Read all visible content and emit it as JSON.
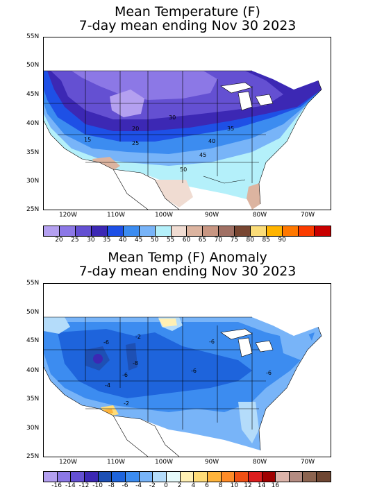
{
  "top": {
    "title_line1": "Mean Temperature (F)",
    "title_line2": "7-day mean ending Nov 30 2023",
    "lat_labels": [
      "55N",
      "50N",
      "45N",
      "40N",
      "35N",
      "30N",
      "25N"
    ],
    "lon_labels": [
      "120W",
      "110W",
      "100W",
      "90W",
      "80W",
      "70W"
    ],
    "contour_labels": [
      "30",
      "20",
      "35",
      "25",
      "40",
      "45",
      "50",
      "15"
    ],
    "colorbar": {
      "colors": [
        "#b4a0f0",
        "#8c78e6",
        "#6450d2",
        "#3c28b4",
        "#1e50e6",
        "#3c8cf0",
        "#78b4f8",
        "#b4f0fa",
        "#f0dcd2",
        "#dcb4a0",
        "#c89682",
        "#a07064",
        "#784632",
        "#fadc78",
        "#ffb400",
        "#ff7800",
        "#fa3c00",
        "#c80000"
      ],
      "labels": [
        "20",
        "25",
        "30",
        "35",
        "40",
        "45",
        "50",
        "55",
        "60",
        "65",
        "70",
        "75",
        "80",
        "85",
        "90"
      ]
    }
  },
  "bottom": {
    "title_line1": "Mean Temp (F) Anomaly",
    "title_line2": "7-day mean ending Nov 30 2023",
    "lat_labels": [
      "55N",
      "50N",
      "45N",
      "40N",
      "35N",
      "30N",
      "25N"
    ],
    "lon_labels": [
      "120W",
      "110W",
      "100W",
      "90W",
      "80W",
      "70W"
    ],
    "contour_labels": [
      "-2",
      "-6",
      "-8",
      "-6",
      "-4",
      "-6",
      "-2",
      "-6",
      "-6"
    ],
    "colorbar": {
      "colors": [
        "#b4a0f0",
        "#8c78e6",
        "#6450d2",
        "#3c28b4",
        "#1e50b4",
        "#1e64dc",
        "#3c8cf0",
        "#78b4f8",
        "#b4dcfa",
        "#e6fafa",
        "#fff0b4",
        "#ffdc78",
        "#ffb43c",
        "#ff8c28",
        "#f05014",
        "#dc1e1e",
        "#a00000",
        "#dcb4aa",
        "#b48c82",
        "#8c6450",
        "#6e4632"
      ],
      "labels": [
        "-16",
        "-14",
        "-12",
        "-10",
        "-8",
        "-6",
        "-4",
        "-2",
        "0",
        "2",
        "4",
        "6",
        "8",
        "10",
        "12",
        "14",
        "16"
      ]
    }
  }
}
